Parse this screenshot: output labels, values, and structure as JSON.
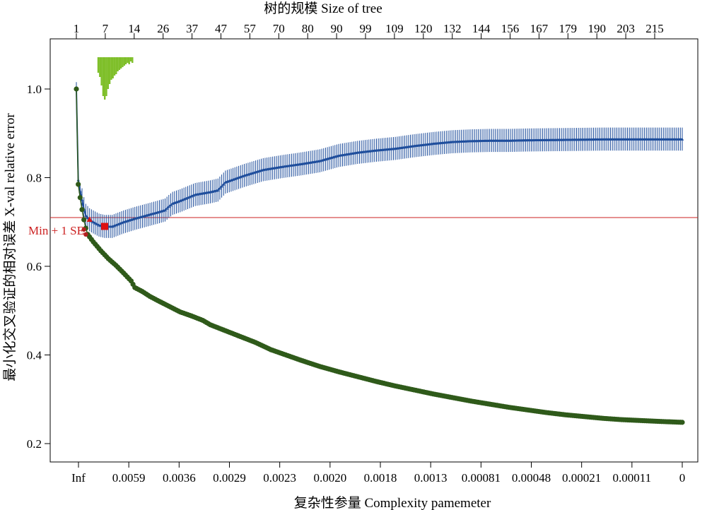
{
  "chart_data": {
    "type": "line",
    "title_top": "树的规模 Size of tree",
    "xlabel": "复杂性参量 Complexity pamemeter",
    "ylabel": "最小化交叉验证的相对误差 X-val relative error",
    "top_tick_labels": [
      "1",
      "7",
      "14",
      "26",
      "37",
      "47",
      "57",
      "70",
      "80",
      "90",
      "99",
      "109",
      "120",
      "132",
      "144",
      "156",
      "167",
      "179",
      "190",
      "203",
      "215"
    ],
    "bottom_tick_labels": [
      "Inf",
      "0.0059",
      "0.0036",
      "0.0029",
      "0.0023",
      "0.0020",
      "0.0018",
      "0.0013",
      "0.00081",
      "0.00048",
      "0.00021",
      "0.00011",
      "0"
    ],
    "yticks": [
      0.2,
      0.4,
      0.6,
      0.8,
      1.0
    ],
    "ylim": [
      0.18,
      1.08
    ],
    "n_splits": 230,
    "reference_line": {
      "label": "Min + 1 SE",
      "value": 0.71,
      "color": "#cc2222"
    },
    "series": [
      {
        "color": "#1f4e9c",
        "marker": "triangle",
        "error_band": 0.026,
        "values_at": [
          [
            1,
            1.0
          ],
          [
            2,
            0.795
          ],
          [
            3,
            0.77
          ],
          [
            4,
            0.75
          ],
          [
            5,
            0.73
          ],
          [
            6,
            0.715
          ],
          [
            8,
            0.705
          ],
          [
            10,
            0.7
          ],
          [
            13,
            0.693
          ],
          [
            16,
            0.69
          ],
          [
            20,
            0.69
          ],
          [
            26,
            0.7
          ],
          [
            32,
            0.708
          ],
          [
            38,
            0.715
          ],
          [
            44,
            0.722
          ],
          [
            48,
            0.727
          ],
          [
            50,
            0.735
          ],
          [
            52,
            0.742
          ],
          [
            56,
            0.748
          ],
          [
            60,
            0.755
          ],
          [
            64,
            0.762
          ],
          [
            72,
            0.768
          ],
          [
            76,
            0.772
          ],
          [
            80,
            0.79
          ],
          [
            90,
            0.805
          ],
          [
            100,
            0.818
          ],
          [
            110,
            0.825
          ],
          [
            120,
            0.831
          ],
          [
            130,
            0.838
          ],
          [
            140,
            0.85
          ],
          [
            150,
            0.857
          ],
          [
            160,
            0.862
          ],
          [
            170,
            0.866
          ],
          [
            180,
            0.872
          ],
          [
            190,
            0.877
          ],
          [
            200,
            0.881
          ],
          [
            210,
            0.883
          ],
          [
            220,
            0.884
          ],
          [
            230,
            0.884
          ],
          [
            240,
            0.885
          ],
          [
            260,
            0.886
          ],
          [
            280,
            0.887
          ],
          [
            300,
            0.887
          ],
          [
            322,
            0.887
          ]
        ]
      },
      {
        "color": "#2f5a1a",
        "marker": "circle",
        "values_at": [
          [
            1,
            1.0
          ],
          [
            2,
            0.785
          ],
          [
            3,
            0.755
          ],
          [
            4,
            0.728
          ],
          [
            5,
            0.705
          ],
          [
            6,
            0.686
          ],
          [
            7,
            0.672
          ],
          [
            10,
            0.655
          ],
          [
            14,
            0.635
          ],
          [
            18,
            0.617
          ],
          [
            22,
            0.602
          ],
          [
            26,
            0.585
          ],
          [
            30,
            0.567
          ],
          [
            32,
            0.552
          ],
          [
            36,
            0.543
          ],
          [
            40,
            0.532
          ],
          [
            44,
            0.523
          ],
          [
            50,
            0.51
          ],
          [
            56,
            0.497
          ],
          [
            62,
            0.488
          ],
          [
            68,
            0.478
          ],
          [
            72,
            0.468
          ],
          [
            78,
            0.458
          ],
          [
            84,
            0.448
          ],
          [
            90,
            0.438
          ],
          [
            96,
            0.428
          ],
          [
            104,
            0.412
          ],
          [
            112,
            0.4
          ],
          [
            120,
            0.388
          ],
          [
            130,
            0.374
          ],
          [
            140,
            0.362
          ],
          [
            150,
            0.351
          ],
          [
            160,
            0.34
          ],
          [
            170,
            0.33
          ],
          [
            180,
            0.321
          ],
          [
            190,
            0.312
          ],
          [
            200,
            0.304
          ],
          [
            210,
            0.296
          ],
          [
            220,
            0.289
          ],
          [
            230,
            0.282
          ],
          [
            240,
            0.276
          ],
          [
            250,
            0.27
          ],
          [
            260,
            0.265
          ],
          [
            270,
            0.261
          ],
          [
            280,
            0.257
          ],
          [
            290,
            0.254
          ],
          [
            300,
            0.252
          ],
          [
            310,
            0.25
          ],
          [
            322,
            0.248
          ]
        ]
      }
    ],
    "min_marker": {
      "x_index": 16,
      "value": 0.69,
      "color": "#dd1111"
    },
    "marker_colors": {
      "limegreen": "#7fbf2a",
      "min": "#dd1111"
    }
  }
}
